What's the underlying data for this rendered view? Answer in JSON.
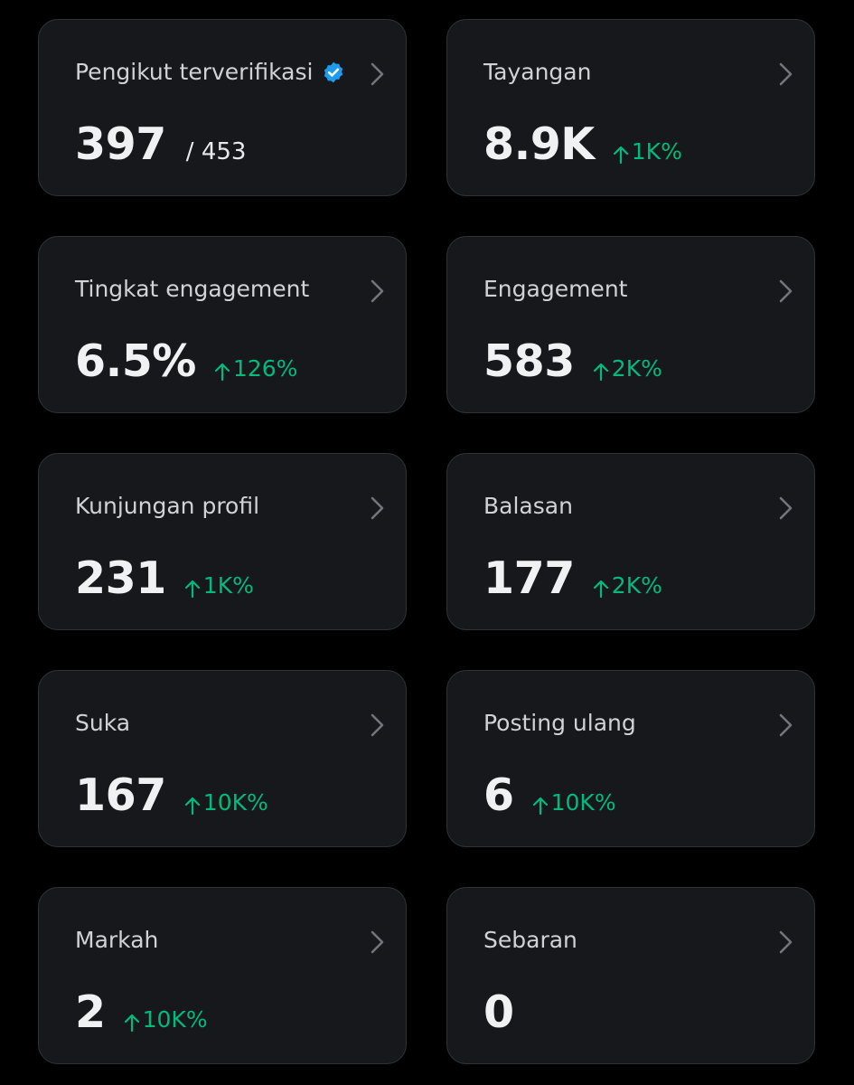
{
  "cards": [
    {
      "label": "Pengikut terverifikasi",
      "value": "397",
      "total": "/ 453"
    },
    {
      "label": "Tayangan",
      "value": "8.9K",
      "change": "1K%"
    },
    {
      "label": "Tingkat engagement",
      "value": "6.5%",
      "change": "126%"
    },
    {
      "label": "Engagement",
      "value": "583",
      "change": "2K%"
    },
    {
      "label": "Kunjungan profil",
      "value": "231",
      "change": "1K%"
    },
    {
      "label": "Balasan",
      "value": "177",
      "change": "2K%"
    },
    {
      "label": "Suka",
      "value": "167",
      "change": "10K%"
    },
    {
      "label": "Posting ulang",
      "value": "6",
      "change": "10K%"
    },
    {
      "label": "Markah",
      "value": "2",
      "change": "10K%"
    },
    {
      "label": "Sebaran",
      "value": "0"
    }
  ]
}
